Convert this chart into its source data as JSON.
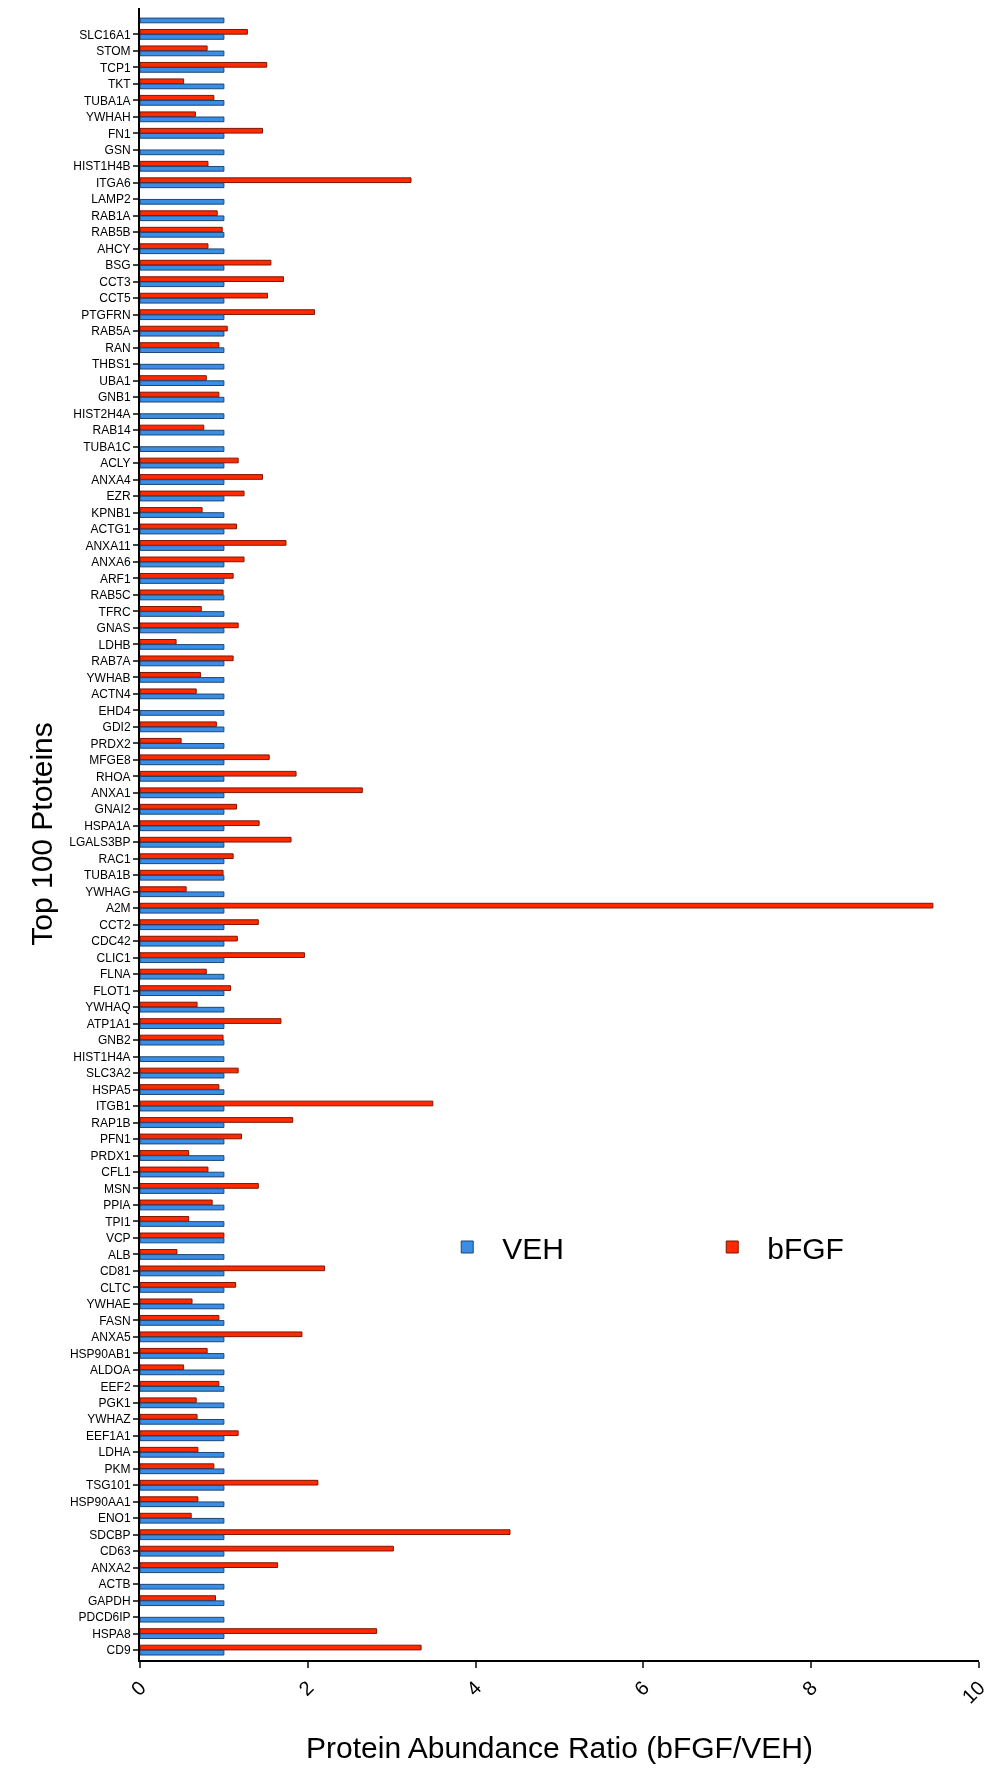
{
  "chart_data": {
    "type": "bar",
    "orientation": "horizontal",
    "xlabel": "Protein Abundance Ratio (bFGF/VEH)",
    "ylabel": "Top 100 Ptoteins",
    "categories": [
      null,
      "SLC16A1",
      "STOM",
      "TCP1",
      "TKT",
      "TUBA1A",
      "YWHAH",
      "FN1",
      "GSN",
      "HIST1H4B",
      "ITGA6",
      "LAMP2",
      "RAB1A",
      "RAB5B",
      "AHCY",
      "BSG",
      "CCT3",
      "CCT5",
      "PTGFRN",
      "RAB5A",
      "RAN",
      "THBS1",
      "UBA1",
      "GNB1",
      "HIST2H4A",
      "RAB14",
      "TUBA1C",
      "ACLY",
      "ANXA4",
      "EZR",
      "KPNB1",
      "ACTG1",
      "ANXA11",
      "ANXA6",
      "ARF1",
      "RAB5C",
      "TFRC",
      "GNAS",
      "LDHB",
      "RAB7A",
      "YWHAB",
      "ACTN4",
      "EHD4",
      "GDI2",
      "PRDX2",
      "MFGE8",
      "RHOA",
      "ANXA1",
      "GNAI2",
      "HSPA1A",
      "LGALS3BP",
      "RAC1",
      "TUBA1B",
      "YWHAG",
      "A2M",
      "CCT2",
      "CDC42",
      "CLIC1",
      "FLNA",
      "FLOT1",
      "YWHAQ",
      "ATP1A1",
      "GNB2",
      "HIST1H4A",
      "SLC3A2",
      "HSPA5",
      "ITGB1",
      "RAP1B",
      "PFN1",
      "PRDX1",
      "CFL1",
      "MSN",
      "PPIA",
      "TPI1",
      "VCP",
      "ALB",
      "CD81",
      "CLTC",
      "YWHAE",
      "FASN",
      "ANXA5",
      "HSP90AB1",
      "ALDOA",
      "EEF2",
      "PGK1",
      "YWHAZ",
      "EEF1A1",
      "LDHA",
      "PKM",
      "TSG101",
      "HSP90AA1",
      "ENO1",
      "SDCBP",
      "CD63",
      "ANXA2",
      "ACTB",
      "GAPDH",
      "PDCD6IP",
      "HSPA8",
      "CD9"
    ],
    "series": [
      {
        "name": "VEH",
        "color": "#3a8ee6",
        "values": [
          1,
          1,
          1,
          1,
          1,
          1,
          1,
          1,
          1,
          1,
          1,
          1,
          1,
          1,
          1,
          1,
          1,
          1,
          1,
          1,
          1,
          1,
          1,
          1,
          1,
          1,
          1,
          1,
          1,
          1,
          1,
          1,
          1,
          1,
          1,
          1,
          1,
          1,
          1,
          1,
          1,
          1,
          1,
          1,
          1,
          1,
          1,
          1,
          1,
          1,
          1,
          1,
          1,
          1,
          1,
          1,
          1,
          1,
          1,
          1,
          1,
          1,
          1,
          1,
          1,
          1,
          1,
          1,
          1,
          1,
          1,
          1,
          1,
          1,
          1,
          1,
          1,
          1,
          1,
          1,
          1,
          1,
          1,
          1,
          1,
          1,
          1,
          1,
          1,
          1,
          1,
          1,
          1,
          1,
          1,
          1,
          1,
          1,
          1,
          1
        ]
      },
      {
        "name": "bFGF",
        "color": "#ff2a00",
        "values": [
          null,
          1.28,
          0.8,
          1.51,
          0.52,
          0.88,
          0.66,
          1.46,
          null,
          0.81,
          3.23,
          null,
          0.92,
          0.98,
          0.81,
          1.56,
          1.71,
          1.52,
          2.08,
          1.04,
          0.94,
          null,
          0.79,
          0.94,
          null,
          0.76,
          null,
          1.17,
          1.46,
          1.24,
          0.74,
          1.15,
          1.74,
          1.24,
          1.11,
          0.99,
          0.73,
          1.17,
          0.43,
          1.11,
          0.72,
          0.67,
          null,
          0.91,
          0.49,
          1.54,
          1.86,
          2.65,
          1.15,
          1.42,
          1.8,
          1.11,
          0.99,
          0.55,
          9.45,
          1.41,
          1.16,
          1.96,
          0.79,
          1.08,
          0.68,
          1.68,
          0.99,
          null,
          1.17,
          0.94,
          3.49,
          1.82,
          1.21,
          0.58,
          0.81,
          1.41,
          0.86,
          0.58,
          1.0,
          0.44,
          2.2,
          1.14,
          0.62,
          0.94,
          1.93,
          0.8,
          0.52,
          0.94,
          0.67,
          0.68,
          1.17,
          0.69,
          0.88,
          2.12,
          0.69,
          0.61,
          4.41,
          3.02,
          1.64,
          null,
          0.9,
          null,
          2.82,
          3.35
        ]
      }
    ],
    "xlim": [
      0,
      10
    ],
    "xticks": [
      0,
      2,
      4,
      6,
      8,
      10
    ],
    "legend": "bottom right"
  }
}
